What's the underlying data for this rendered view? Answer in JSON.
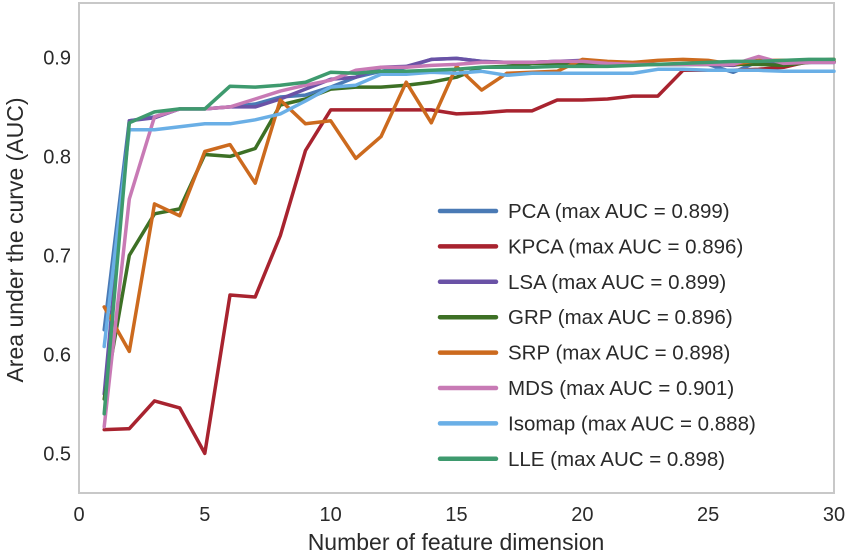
{
  "chart_data": {
    "type": "line",
    "xlabel": "Number of feature dimension",
    "ylabel": "Area under the curve (AUC)",
    "xlim": [
      0,
      30
    ],
    "ylim": [
      0.46,
      0.955
    ],
    "xticks": [
      0,
      5,
      10,
      15,
      20,
      25,
      30
    ],
    "yticks": [
      0.5,
      0.6,
      0.7,
      0.8,
      0.9
    ],
    "xtick_labels": [
      "0",
      "5",
      "10",
      "15",
      "20",
      "25",
      "30"
    ],
    "ytick_labels": [
      "0.5",
      "0.6",
      "0.7",
      "0.8",
      "0.9"
    ],
    "grid": false,
    "legend_position": "lower-right",
    "x": [
      1,
      2,
      3,
      4,
      5,
      6,
      7,
      8,
      9,
      10,
      11,
      12,
      13,
      14,
      15,
      16,
      17,
      18,
      19,
      20,
      21,
      22,
      23,
      24,
      25,
      26,
      27,
      28,
      29,
      30
    ],
    "series": [
      {
        "name": "PCA (max AUC = 0.899)",
        "color": "#4a7ab5",
        "values": [
          0.625,
          0.836,
          0.84,
          0.848,
          0.848,
          0.85,
          0.853,
          0.86,
          0.862,
          0.87,
          0.88,
          0.886,
          0.89,
          0.898,
          0.899,
          0.896,
          0.895,
          0.895,
          0.896,
          0.896,
          0.894,
          0.893,
          0.893,
          0.893,
          0.893,
          0.885,
          0.896,
          0.894,
          0.895,
          0.895
        ]
      },
      {
        "name": "KPCA (max AUC = 0.896)",
        "color": "#a8232f",
        "values": [
          0.524,
          0.525,
          0.553,
          0.546,
          0.5,
          0.66,
          0.658,
          0.72,
          0.806,
          0.847,
          0.847,
          0.847,
          0.847,
          0.847,
          0.843,
          0.844,
          0.846,
          0.846,
          0.857,
          0.857,
          0.858,
          0.861,
          0.861,
          0.887,
          0.887,
          0.887,
          0.888,
          0.89,
          0.896,
          0.896
        ]
      },
      {
        "name": "LSA (max AUC = 0.899)",
        "color": "#6a52a6",
        "values": [
          0.56,
          0.836,
          0.839,
          0.848,
          0.848,
          0.85,
          0.85,
          0.858,
          0.868,
          0.878,
          0.88,
          0.89,
          0.891,
          0.898,
          0.899,
          0.896,
          0.895,
          0.895,
          0.896,
          0.897,
          0.894,
          0.893,
          0.893,
          0.893,
          0.893,
          0.892,
          0.896,
          0.894,
          0.895,
          0.895
        ]
      },
      {
        "name": "GRP (max AUC = 0.896)",
        "color": "#3d7025",
        "values": [
          0.555,
          0.7,
          0.742,
          0.747,
          0.802,
          0.8,
          0.808,
          0.852,
          0.858,
          0.868,
          0.87,
          0.87,
          0.872,
          0.875,
          0.88,
          0.89,
          0.891,
          0.894,
          0.894,
          0.894,
          0.893,
          0.893,
          0.893,
          0.893,
          0.893,
          0.893,
          0.893,
          0.892,
          0.895,
          0.896
        ]
      },
      {
        "name": "SRP (max AUC = 0.898)",
        "color": "#cc6a1e",
        "values": [
          0.648,
          0.603,
          0.752,
          0.74,
          0.805,
          0.812,
          0.773,
          0.857,
          0.833,
          0.836,
          0.798,
          0.82,
          0.875,
          0.834,
          0.891,
          0.867,
          0.884,
          0.885,
          0.886,
          0.898,
          0.896,
          0.895,
          0.897,
          0.898,
          0.897,
          0.893,
          0.897,
          0.897,
          0.897,
          0.898
        ]
      },
      {
        "name": "MDS (max AUC = 0.901)",
        "color": "#c87ab5",
        "values": [
          0.527,
          0.757,
          0.84,
          0.848,
          0.848,
          0.85,
          0.858,
          0.866,
          0.872,
          0.877,
          0.887,
          0.89,
          0.89,
          0.892,
          0.893,
          0.895,
          0.895,
          0.895,
          0.896,
          0.896,
          0.894,
          0.893,
          0.893,
          0.893,
          0.893,
          0.893,
          0.901,
          0.894,
          0.895,
          0.895
        ]
      },
      {
        "name": "Isomap (max AUC = 0.888)",
        "color": "#6aafe6",
        "values": [
          0.608,
          0.827,
          0.827,
          0.83,
          0.833,
          0.833,
          0.837,
          0.843,
          0.856,
          0.87,
          0.872,
          0.883,
          0.883,
          0.885,
          0.884,
          0.886,
          0.882,
          0.884,
          0.884,
          0.884,
          0.884,
          0.884,
          0.888,
          0.888,
          0.887,
          0.887,
          0.887,
          0.886,
          0.886,
          0.886
        ]
      },
      {
        "name": "LLE (max AUC = 0.898)",
        "color": "#3e9a6e",
        "values": [
          0.54,
          0.834,
          0.845,
          0.848,
          0.848,
          0.871,
          0.87,
          0.872,
          0.875,
          0.885,
          0.884,
          0.886,
          0.886,
          0.887,
          0.888,
          0.89,
          0.89,
          0.89,
          0.891,
          0.891,
          0.891,
          0.892,
          0.893,
          0.894,
          0.895,
          0.896,
          0.896,
          0.897,
          0.898,
          0.898
        ]
      }
    ]
  }
}
